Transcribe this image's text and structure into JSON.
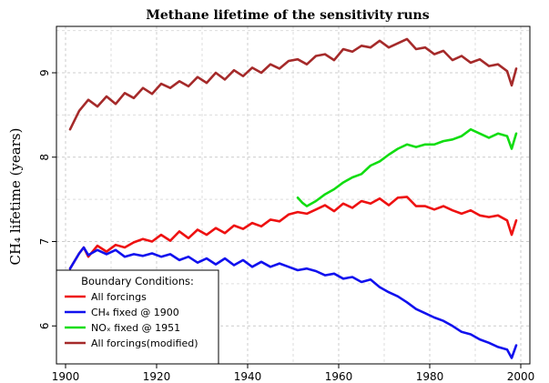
{
  "chart_data": {
    "type": "line",
    "title": "Methane lifetime of the sensitivity runs",
    "xlabel": "",
    "ylabel": "CH₄ lifetime (years)",
    "xlim": [
      1898,
      2002
    ],
    "ylim": [
      5.55,
      9.55
    ],
    "x_ticks": [
      1900,
      1920,
      1940,
      1960,
      1980,
      2000
    ],
    "y_ticks": [
      6,
      7,
      8,
      9
    ],
    "grid": true,
    "legend": {
      "title": "Boundary Conditions:",
      "position": "bottom-left",
      "entries": [
        "All forcings",
        "CH₄ fixed @ 1900",
        "NOₓ fixed @ 1951",
        "All forcings(modified)"
      ]
    },
    "series": [
      {
        "name": "All forcings",
        "color": "#ee1111",
        "x": [
          1901,
          1903,
          1904,
          1905,
          1907,
          1909,
          1911,
          1913,
          1915,
          1917,
          1919,
          1921,
          1923,
          1925,
          1927,
          1929,
          1931,
          1933,
          1935,
          1937,
          1939,
          1941,
          1943,
          1945,
          1947,
          1949,
          1951,
          1953,
          1955,
          1957,
          1959,
          1961,
          1963,
          1965,
          1967,
          1969,
          1971,
          1973,
          1975,
          1977,
          1979,
          1981,
          1983,
          1985,
          1987,
          1989,
          1991,
          1993,
          1995,
          1997,
          1998,
          1999
        ],
        "y": [
          6.68,
          6.86,
          6.93,
          6.82,
          6.95,
          6.88,
          6.96,
          6.93,
          6.99,
          7.03,
          7.0,
          7.08,
          7.01,
          7.12,
          7.04,
          7.14,
          7.08,
          7.16,
          7.1,
          7.19,
          7.15,
          7.22,
          7.18,
          7.26,
          7.24,
          7.32,
          7.35,
          7.33,
          7.38,
          7.43,
          7.36,
          7.45,
          7.4,
          7.48,
          7.45,
          7.51,
          7.43,
          7.52,
          7.53,
          7.42,
          7.42,
          7.38,
          7.42,
          7.37,
          7.33,
          7.37,
          7.31,
          7.29,
          7.31,
          7.25,
          7.08,
          7.25
        ]
      },
      {
        "name": "CH₄ fixed @ 1900",
        "color": "#1111ee",
        "x": [
          1901,
          1903,
          1904,
          1905,
          1907,
          1909,
          1911,
          1913,
          1915,
          1917,
          1919,
          1921,
          1923,
          1925,
          1927,
          1929,
          1931,
          1933,
          1935,
          1937,
          1939,
          1941,
          1943,
          1945,
          1947,
          1949,
          1951,
          1953,
          1955,
          1957,
          1959,
          1961,
          1963,
          1965,
          1967,
          1969,
          1971,
          1973,
          1975,
          1977,
          1979,
          1981,
          1983,
          1985,
          1987,
          1989,
          1991,
          1993,
          1995,
          1997,
          1998,
          1999
        ],
        "y": [
          6.68,
          6.86,
          6.93,
          6.84,
          6.9,
          6.85,
          6.9,
          6.82,
          6.85,
          6.83,
          6.86,
          6.82,
          6.85,
          6.78,
          6.82,
          6.75,
          6.8,
          6.73,
          6.8,
          6.72,
          6.78,
          6.7,
          6.76,
          6.7,
          6.74,
          6.7,
          6.66,
          6.68,
          6.65,
          6.6,
          6.62,
          6.56,
          6.58,
          6.52,
          6.55,
          6.46,
          6.4,
          6.35,
          6.28,
          6.2,
          6.15,
          6.1,
          6.06,
          6.0,
          5.93,
          5.9,
          5.84,
          5.8,
          5.75,
          5.72,
          5.62,
          5.77
        ]
      },
      {
        "name": "NOₓ fixed @ 1951",
        "color": "#11dd11",
        "x": [
          1951,
          1952,
          1953,
          1955,
          1957,
          1959,
          1961,
          1963,
          1965,
          1967,
          1969,
          1971,
          1973,
          1975,
          1977,
          1979,
          1981,
          1983,
          1985,
          1987,
          1989,
          1991,
          1993,
          1995,
          1997,
          1998,
          1999
        ],
        "y": [
          7.52,
          7.46,
          7.42,
          7.48,
          7.56,
          7.62,
          7.7,
          7.76,
          7.8,
          7.9,
          7.95,
          8.03,
          8.1,
          8.15,
          8.12,
          8.15,
          8.15,
          8.19,
          8.21,
          8.25,
          8.33,
          8.28,
          8.23,
          8.28,
          8.25,
          8.1,
          8.28
        ]
      },
      {
        "name": "All forcings(modified)",
        "color": "#a52a2a",
        "x": [
          1901,
          1903,
          1905,
          1907,
          1909,
          1911,
          1913,
          1915,
          1917,
          1919,
          1921,
          1923,
          1925,
          1927,
          1929,
          1931,
          1933,
          1935,
          1937,
          1939,
          1941,
          1943,
          1945,
          1947,
          1949,
          1951,
          1953,
          1955,
          1957,
          1959,
          1961,
          1963,
          1965,
          1967,
          1969,
          1971,
          1973,
          1975,
          1977,
          1979,
          1981,
          1983,
          1985,
          1987,
          1989,
          1991,
          1993,
          1995,
          1997,
          1998,
          1999
        ],
        "y": [
          8.33,
          8.55,
          8.68,
          8.6,
          8.72,
          8.63,
          8.76,
          8.7,
          8.82,
          8.75,
          8.87,
          8.82,
          8.9,
          8.84,
          8.95,
          8.88,
          9.0,
          8.92,
          9.03,
          8.96,
          9.06,
          9.0,
          9.1,
          9.05,
          9.14,
          9.16,
          9.1,
          9.2,
          9.22,
          9.15,
          9.28,
          9.25,
          9.32,
          9.3,
          9.38,
          9.3,
          9.35,
          9.4,
          9.28,
          9.3,
          9.22,
          9.26,
          9.15,
          9.2,
          9.12,
          9.16,
          9.08,
          9.1,
          9.02,
          8.85,
          9.05
        ]
      }
    ]
  }
}
